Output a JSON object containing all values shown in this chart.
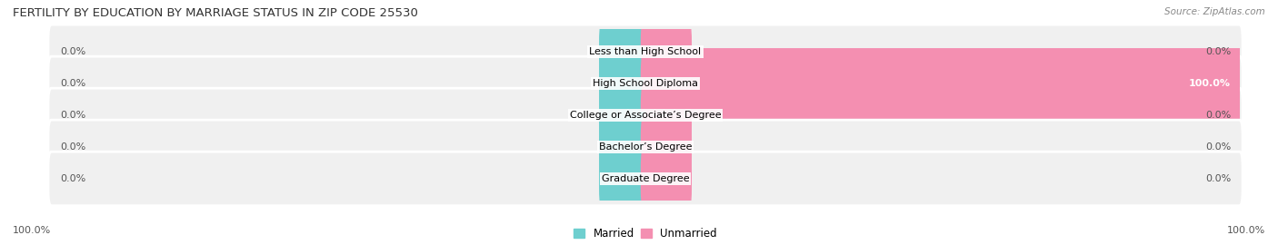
{
  "title": "FERTILITY BY EDUCATION BY MARRIAGE STATUS IN ZIP CODE 25530",
  "source": "Source: ZipAtlas.com",
  "categories": [
    "Less than High School",
    "High School Diploma",
    "College or Associate’s Degree",
    "Bachelor’s Degree",
    "Graduate Degree"
  ],
  "married_values": [
    0.0,
    0.0,
    0.0,
    0.0,
    0.0
  ],
  "unmarried_values": [
    0.0,
    100.0,
    0.0,
    0.0,
    0.0
  ],
  "married_color": "#6ECFCF",
  "unmarried_color": "#F48FB1",
  "row_bg_color": "#F0F0F0",
  "title_fontsize": 9.5,
  "source_fontsize": 7.5,
  "label_fontsize": 8,
  "category_fontsize": 8
}
